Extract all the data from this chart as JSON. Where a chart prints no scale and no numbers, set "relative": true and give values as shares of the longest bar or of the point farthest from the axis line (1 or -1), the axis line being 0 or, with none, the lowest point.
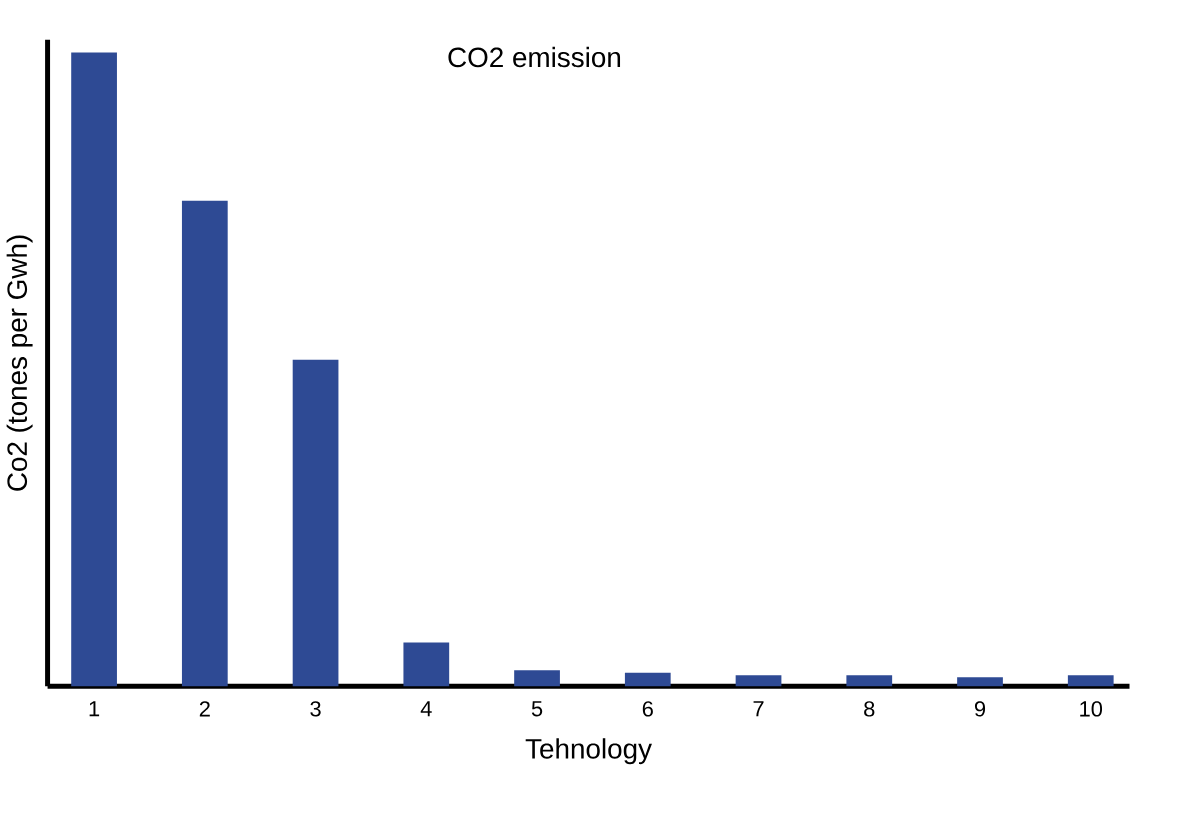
{
  "chart_data": {
    "type": "bar",
    "title": "CO2 emission",
    "xlabel": "Tehnology",
    "ylabel": "Co2 (tones per Gwh)",
    "categories": [
      "1",
      "2",
      "3",
      "4",
      "5",
      "6",
      "7",
      "8",
      "9",
      "10"
    ],
    "values": [
      1,
      0.766,
      0.515,
      0.069,
      0.025,
      0.021,
      0.017,
      0.017,
      0.014,
      0.017
    ],
    "color": "#2e4a94",
    "relative": true
  }
}
